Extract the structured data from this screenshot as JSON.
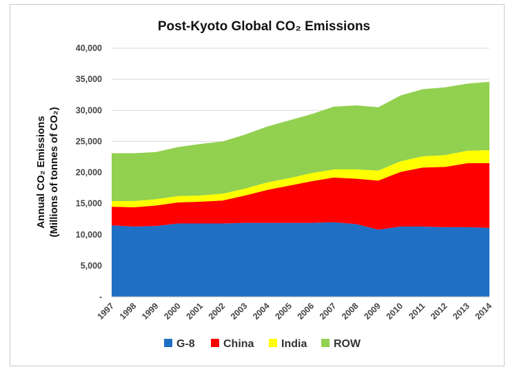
{
  "chart_data": {
    "type": "area",
    "stacked": true,
    "title": "Post-Kyoto Global CO₂ Emissions",
    "ylabel_line1": "Annual CO₂ Emissions",
    "ylabel_line2": "(Millions of tonnes of CO₂)",
    "xlabel": "",
    "ylim": [
      0,
      40000
    ],
    "yticks": [
      0,
      5000,
      10000,
      15000,
      20000,
      25000,
      30000,
      35000,
      40000
    ],
    "ytick_labels": [
      "-",
      "5,000",
      "10,000",
      "15,000",
      "20,000",
      "25,000",
      "30,000",
      "35,000",
      "40,000"
    ],
    "grid": true,
    "legend_position": "bottom",
    "categories": [
      "1997",
      "1998",
      "1999",
      "2000",
      "2001",
      "2002",
      "2003",
      "2004",
      "2005",
      "2006",
      "2007",
      "2008",
      "2009",
      "2010",
      "2011",
      "2012",
      "2013",
      "2014"
    ],
    "series": [
      {
        "name": "G-8",
        "color": "#1f6fc5",
        "values": [
          11500,
          11300,
          11400,
          11800,
          11800,
          11800,
          11900,
          11900,
          11900,
          11900,
          12000,
          11700,
          10800,
          11300,
          11300,
          11200,
          11200,
          11100
        ]
      },
      {
        "name": "China",
        "color": "#ff0000",
        "values": [
          3000,
          3100,
          3300,
          3400,
          3500,
          3700,
          4400,
          5300,
          6000,
          6700,
          7200,
          7300,
          7900,
          8800,
          9500,
          9700,
          10300,
          10400
        ]
      },
      {
        "name": "India",
        "color": "#ffff00",
        "values": [
          900,
          1000,
          1000,
          1000,
          1000,
          1100,
          1100,
          1200,
          1200,
          1300,
          1300,
          1500,
          1600,
          1700,
          1800,
          1900,
          2000,
          2100
        ]
      },
      {
        "name": "ROW",
        "color": "#92d050",
        "values": [
          7700,
          7700,
          7600,
          7900,
          8300,
          8400,
          8700,
          9000,
          9300,
          9500,
          10100,
          10300,
          10200,
          10600,
          10800,
          10900,
          10800,
          11000
        ]
      }
    ]
  }
}
